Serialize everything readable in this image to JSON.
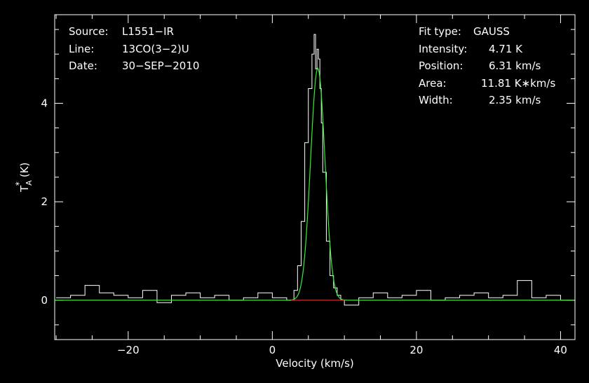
{
  "chart_data": {
    "type": "line",
    "xlabel": "Velocity (km/s)",
    "ylabel_main": "T",
    "ylabel_sub": "A",
    "ylabel_sup": "*",
    "ylabel_unit": "(K)",
    "xlim": [
      -30.2,
      42
    ],
    "ylim": [
      -0.8,
      5.8
    ],
    "x_ticks": [
      -20,
      0,
      20,
      40
    ],
    "y_ticks": [
      0,
      2,
      4
    ],
    "x_tick_labels": [
      "−20",
      "0",
      "20",
      "40"
    ],
    "y_tick_labels": [
      "0",
      "2",
      "4"
    ],
    "grid": false,
    "info_left": {
      "source_label": "Source:",
      "source_value": "L1551−IR",
      "line_label": "Line:",
      "line_value": "13CO(3−2)U",
      "date_label": "Date:",
      "date_value": "30−SEP−2010"
    },
    "info_right": {
      "fit_label": "Fit type:",
      "fit_value": "GAUSS",
      "intensity_label": "Intensity:",
      "intensity_value": "4.71 K",
      "position_label": "Position:",
      "position_value": "6.31 km/s",
      "area_label": "Area:",
      "area_value": "11.81 K∗km/s",
      "width_label": "Width:",
      "width_value": "2.35 km/s"
    },
    "fit": {
      "amplitude": 4.71,
      "center": 6.31,
      "fwhm": 2.35
    },
    "residual_range": [
      2.6,
      10.0
    ],
    "series": [
      {
        "values_x": [
          -30.0,
          -28.0,
          -26.0,
          -24.0,
          -22.0,
          -20.0,
          -18.0,
          -16.0,
          -14.0,
          -12.0,
          -10.0,
          -8.0,
          -6.0,
          -4.0,
          -2.0,
          0.0,
          2.0,
          3.0,
          3.5,
          4.0,
          4.5,
          5.0,
          5.5,
          5.8,
          6.0,
          6.2,
          6.4,
          6.6,
          6.8,
          7.0,
          7.5,
          8.0,
          8.5,
          9.0,
          9.5,
          10.0,
          12.0,
          14.0,
          16.0,
          18.0,
          20.0,
          22.0,
          24.0,
          26.0,
          28.0,
          30.0,
          32.0,
          34.0,
          36.0,
          38.0,
          40.0,
          42.0
        ],
        "values_y": [
          0.05,
          0.1,
          0.3,
          0.15,
          0.1,
          0.05,
          0.2,
          -0.05,
          0.1,
          0.15,
          0.05,
          0.1,
          0.0,
          0.05,
          0.15,
          0.05,
          0.0,
          0.2,
          0.7,
          1.6,
          3.2,
          4.3,
          5.0,
          5.4,
          4.7,
          5.1,
          4.9,
          4.3,
          3.6,
          2.6,
          1.2,
          0.5,
          0.25,
          0.1,
          0.0,
          -0.1,
          0.05,
          0.15,
          0.05,
          0.1,
          0.2,
          0.0,
          0.05,
          0.1,
          0.15,
          0.05,
          0.1,
          0.4,
          0.05,
          0.1,
          0.0,
          0.05
        ]
      }
    ]
  }
}
